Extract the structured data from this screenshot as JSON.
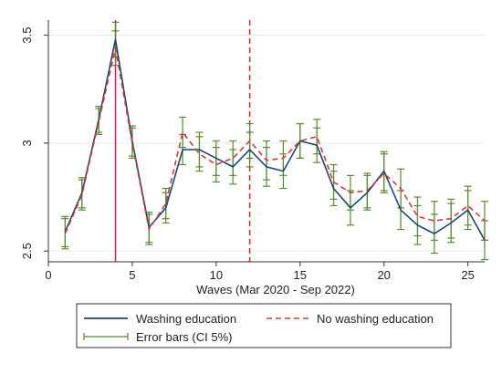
{
  "chart_data": {
    "type": "line",
    "xlabel": "Waves (Mar 2020 - Sep 2022)",
    "ylabel": "",
    "xlim": [
      0,
      26
    ],
    "ylim": [
      2.45,
      3.57
    ],
    "x_ticks": [
      0,
      5,
      10,
      15,
      20,
      25
    ],
    "y_ticks": [
      2.5,
      3,
      3.5
    ],
    "y_tick_labels": [
      "2.5",
      "3",
      "3.5"
    ],
    "grid": "horizontal",
    "legend_position": "bottom",
    "x": [
      1,
      2,
      3,
      4,
      5,
      6,
      7,
      8,
      9,
      10,
      11,
      12,
      13,
      14,
      15,
      16,
      17,
      18,
      19,
      20,
      21,
      22,
      23,
      24,
      25,
      26
    ],
    "series": [
      {
        "name": "Washing education",
        "color": "#1a476f",
        "style": "solid",
        "values": [
          2.59,
          2.77,
          3.11,
          3.48,
          3.01,
          2.61,
          2.7,
          2.97,
          2.97,
          2.93,
          2.89,
          2.97,
          2.89,
          2.87,
          3.01,
          2.99,
          2.79,
          2.7,
          2.77,
          2.87,
          2.69,
          2.62,
          2.58,
          2.63,
          2.69,
          2.55
        ]
      },
      {
        "name": "No washing education",
        "color": "#d9363e",
        "style": "dashed",
        "values": [
          2.58,
          2.76,
          3.1,
          3.44,
          3.0,
          2.6,
          2.72,
          3.05,
          2.95,
          2.9,
          2.93,
          3.01,
          2.92,
          2.93,
          3.01,
          3.03,
          2.82,
          2.77,
          2.78,
          2.86,
          2.79,
          2.66,
          2.64,
          2.65,
          2.71,
          2.64
        ]
      }
    ],
    "error_bars": {
      "name": "Error bars (CI 5%)",
      "color": "#5a8b2e",
      "half_width": [
        0.07,
        0.07,
        0.06,
        0.08,
        0.07,
        0.07,
        0.07,
        0.07,
        0.08,
        0.08,
        0.08,
        0.08,
        0.09,
        0.08,
        0.08,
        0.08,
        0.08,
        0.08,
        0.08,
        0.09,
        0.09,
        0.09,
        0.09,
        0.09,
        0.09,
        0.09
      ]
    },
    "vertical_lines": [
      {
        "x": 4,
        "color": "#cf1f5a",
        "style": "solid"
      },
      {
        "x": 12,
        "color": "#d6222e",
        "style": "dashed"
      }
    ]
  }
}
